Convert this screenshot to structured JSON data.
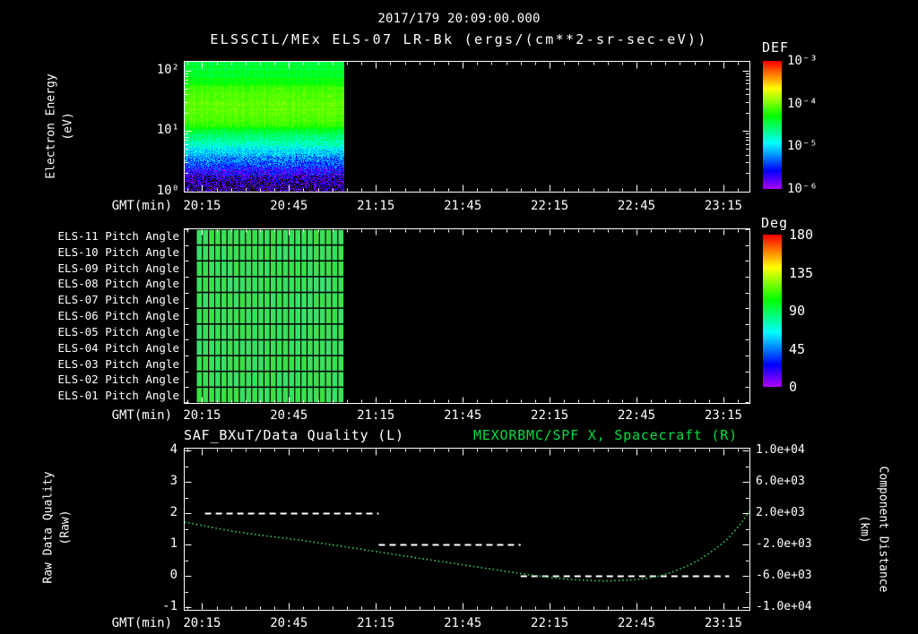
{
  "header": {
    "timestamp": "2017/179 20:09:00.000",
    "title": "ELSSCIL/MEx ELS-07 LR-Bk  (ergs/(cm**2-sr-sec-eV))"
  },
  "colors": {
    "background": "#000000",
    "text": "#ffffff",
    "green_title": "#00dd44",
    "curve_green": "#35bb55"
  },
  "time_axis": {
    "label": "GMT(min)",
    "ticks": [
      "20:15",
      "20:45",
      "21:15",
      "21:45",
      "22:15",
      "22:45",
      "23:15"
    ],
    "tick_minutes": [
      6,
      36,
      66,
      96,
      126,
      156,
      186
    ],
    "start_time": "20:09",
    "end_minute": 195
  },
  "spectrogram_panel": {
    "ylabel": [
      "Electron Energy",
      "(eV)"
    ],
    "yticks": [
      {
        "label": "10²",
        "log": 2
      },
      {
        "label": "10¹",
        "log": 1
      },
      {
        "label": "10⁰",
        "log": 0
      }
    ],
    "colorbar": {
      "title": "DEF",
      "ticks": [
        {
          "label": "10⁻³",
          "log": -3
        },
        {
          "label": "10⁻⁴",
          "log": -4
        },
        {
          "label": "10⁻⁵",
          "log": -5
        },
        {
          "label": "10⁻⁶",
          "log": -6
        }
      ]
    }
  },
  "pitch_panel": {
    "row_labels": [
      "ELS-11 Pitch Angle",
      "ELS-10 Pitch Angle",
      "ELS-09 Pitch Angle",
      "ELS-08 Pitch Angle",
      "ELS-07 Pitch Angle",
      "ELS-06 Pitch Angle",
      "ELS-05 Pitch Angle",
      "ELS-04 Pitch Angle",
      "ELS-03 Pitch Angle",
      "ELS-02 Pitch Angle",
      "ELS-01 Pitch Angle"
    ],
    "colorbar": {
      "title": "Deg",
      "ticks": [
        180,
        135,
        90,
        45,
        0
      ]
    }
  },
  "quality_panel": {
    "title_left": "SAF_BXuT/Data Quality (L)",
    "title_right": "MEXORBMC/SPF X, Spacecraft (R)",
    "ylabel_left": [
      "Raw Data Quality",
      "(Raw)"
    ],
    "yticks_left": [
      4,
      3,
      2,
      1,
      0,
      -1
    ],
    "ylabel_right": [
      "Component Distance",
      "(km)"
    ],
    "yticks_right": [
      "1.0e+04",
      "6.0e+03",
      "2.0e+03",
      "-2.0e+03",
      "-6.0e+03",
      "-1.0e+04"
    ]
  },
  "chart_data": [
    {
      "type": "heatmap",
      "title": "ELSSCIL/MEx ELS-07 LR-Bk electron energy spectrogram",
      "x_unit": "GMT minutes after 20:09",
      "x_start_min": 0,
      "x_end_min": 55,
      "ylabel": "Electron Energy (eV)",
      "y_log10_range": [
        0,
        2.16
      ],
      "value_label": "DEF (ergs/(cm**2-sr-sec-eV))",
      "value_log10_range": [
        -6,
        -3
      ],
      "energy_flux_profile": [
        [
          0,
          -6.15
        ],
        [
          0.2,
          -5.9
        ],
        [
          0.4,
          -5.5
        ],
        [
          0.6,
          -5.1
        ],
        [
          0.8,
          -4.75
        ],
        [
          0.95,
          -4.5
        ],
        [
          1.1,
          -4.15
        ],
        [
          1.3,
          -4.05
        ],
        [
          1.5,
          -4.05
        ],
        [
          1.7,
          -4.12
        ],
        [
          1.85,
          -4.3
        ],
        [
          2.0,
          -4.4
        ],
        [
          2.16,
          -4.45
        ]
      ],
      "noise_base": 0.16,
      "noise_low_energy_extra": 0.8
    },
    {
      "type": "heatmap",
      "title": "ELS-01..ELS-11 pitch angles",
      "x_start_min": 4,
      "x_end_min": 55,
      "columns": 24,
      "value_label": "Pitch angle (deg)",
      "value_range": [
        0,
        180
      ],
      "row_values": [
        97,
        95,
        96,
        94,
        95,
        96,
        95,
        94,
        96,
        95,
        97
      ],
      "cell_noise_deg": 9
    },
    {
      "type": "line",
      "title": "SAF_BXuT/Data Quality (L) and MEXORBMC/SPF X Spacecraft (R)",
      "ylim_left": [
        -1,
        4
      ],
      "ylim_right": [
        -10000,
        10000
      ],
      "series": [
        {
          "name": "SAF_BXuT/Data Quality",
          "axis": "left",
          "style": "dashed",
          "color": "#ffffff",
          "segments": [
            {
              "t_start": 7,
              "t_end": 67,
              "value": 2
            },
            {
              "t_start": 67,
              "t_end": 116,
              "value": 1
            },
            {
              "t_start": 116,
              "t_end": 188,
              "value": 0
            }
          ]
        },
        {
          "name": "MEXORBMC/SPF X, Spacecraft",
          "axis": "right",
          "style": "dotted",
          "color": "#35bb55",
          "points_t_min": [
            0,
            6,
            21,
            36,
            51,
            66,
            81,
            96,
            111,
            126,
            141,
            156,
            166,
            176,
            186,
            191,
            195
          ],
          "points_km": [
            850,
            400,
            -600,
            -1250,
            -2050,
            -2900,
            -3760,
            -4600,
            -5450,
            -6230,
            -6690,
            -6560,
            -5900,
            -4400,
            -1900,
            150,
            2230
          ]
        }
      ]
    }
  ]
}
